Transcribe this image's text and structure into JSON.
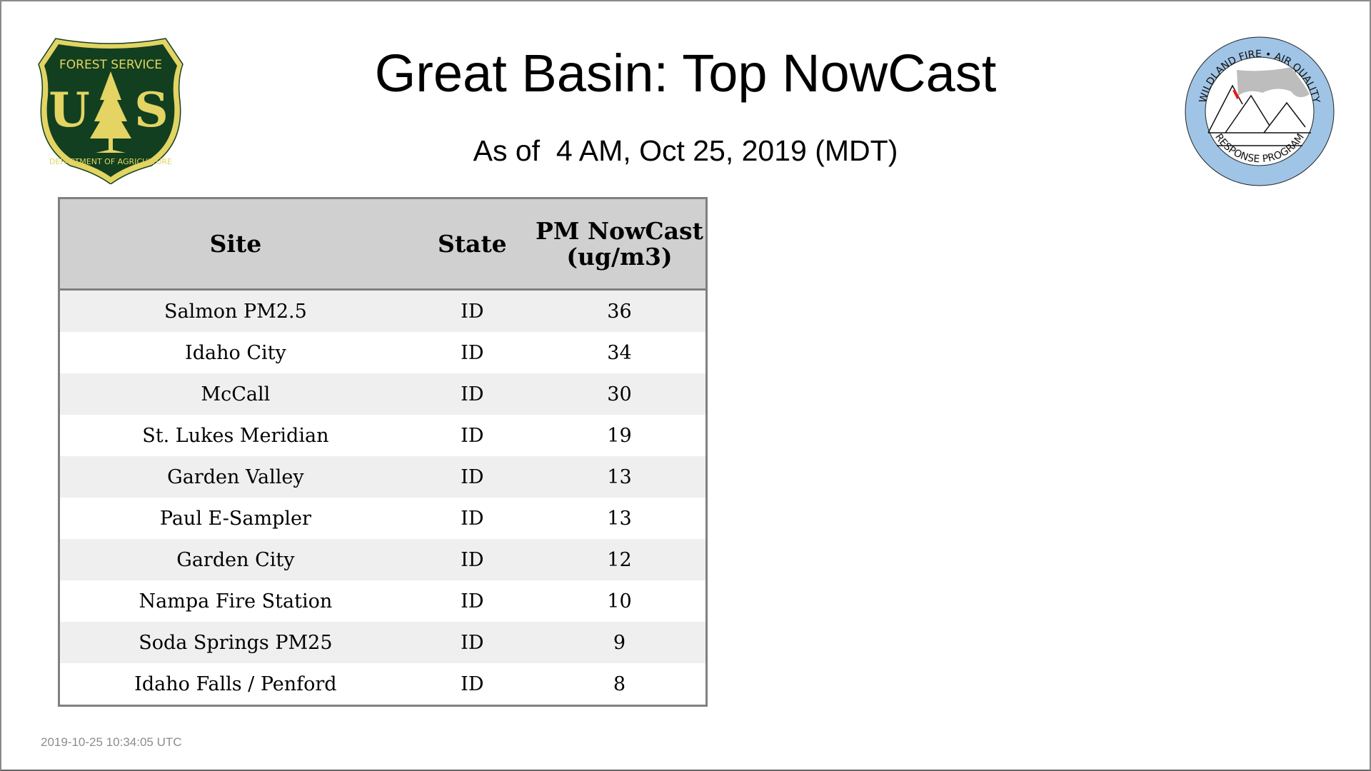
{
  "header": {
    "title": "Great Basin: Top NowCast",
    "subtitle": "As of  4 AM, Oct 25, 2019 (MDT)"
  },
  "logos": {
    "left": {
      "text_top": "FOREST SERVICE",
      "letters": "US",
      "text_bottom": "DEPARTMENT OF AGRICULTURE",
      "colors": {
        "green": "#123f1f",
        "gold": "#e3d463"
      }
    },
    "right": {
      "text_top": "WILDLAND FIRE • AIR QUALITY",
      "text_bottom": "RESPONSE PROGRAM",
      "colors": {
        "ring": "#a0c4e6",
        "smoke": "#bdbdbd",
        "fire": "#e01a1a"
      }
    }
  },
  "table": {
    "columns": [
      "Site",
      "State",
      "PM NowCast (ug/m3)"
    ],
    "rows": [
      {
        "site": "Salmon PM2.5",
        "state": "ID",
        "value": "36"
      },
      {
        "site": "Idaho City",
        "state": "ID",
        "value": "34"
      },
      {
        "site": "McCall",
        "state": "ID",
        "value": "30"
      },
      {
        "site": "St. Lukes Meridian",
        "state": "ID",
        "value": "19"
      },
      {
        "site": "Garden Valley",
        "state": "ID",
        "value": "13"
      },
      {
        "site": "Paul E-Sampler",
        "state": "ID",
        "value": "13"
      },
      {
        "site": "Garden City",
        "state": "ID",
        "value": "12"
      },
      {
        "site": "Nampa Fire Station",
        "state": "ID",
        "value": "10"
      },
      {
        "site": "Soda Springs PM25",
        "state": "ID",
        "value": "9"
      },
      {
        "site": "Idaho Falls / Penford",
        "state": "ID",
        "value": "8"
      }
    ]
  },
  "footer": {
    "timestamp": "2019-10-25 10:34:05 UTC"
  }
}
